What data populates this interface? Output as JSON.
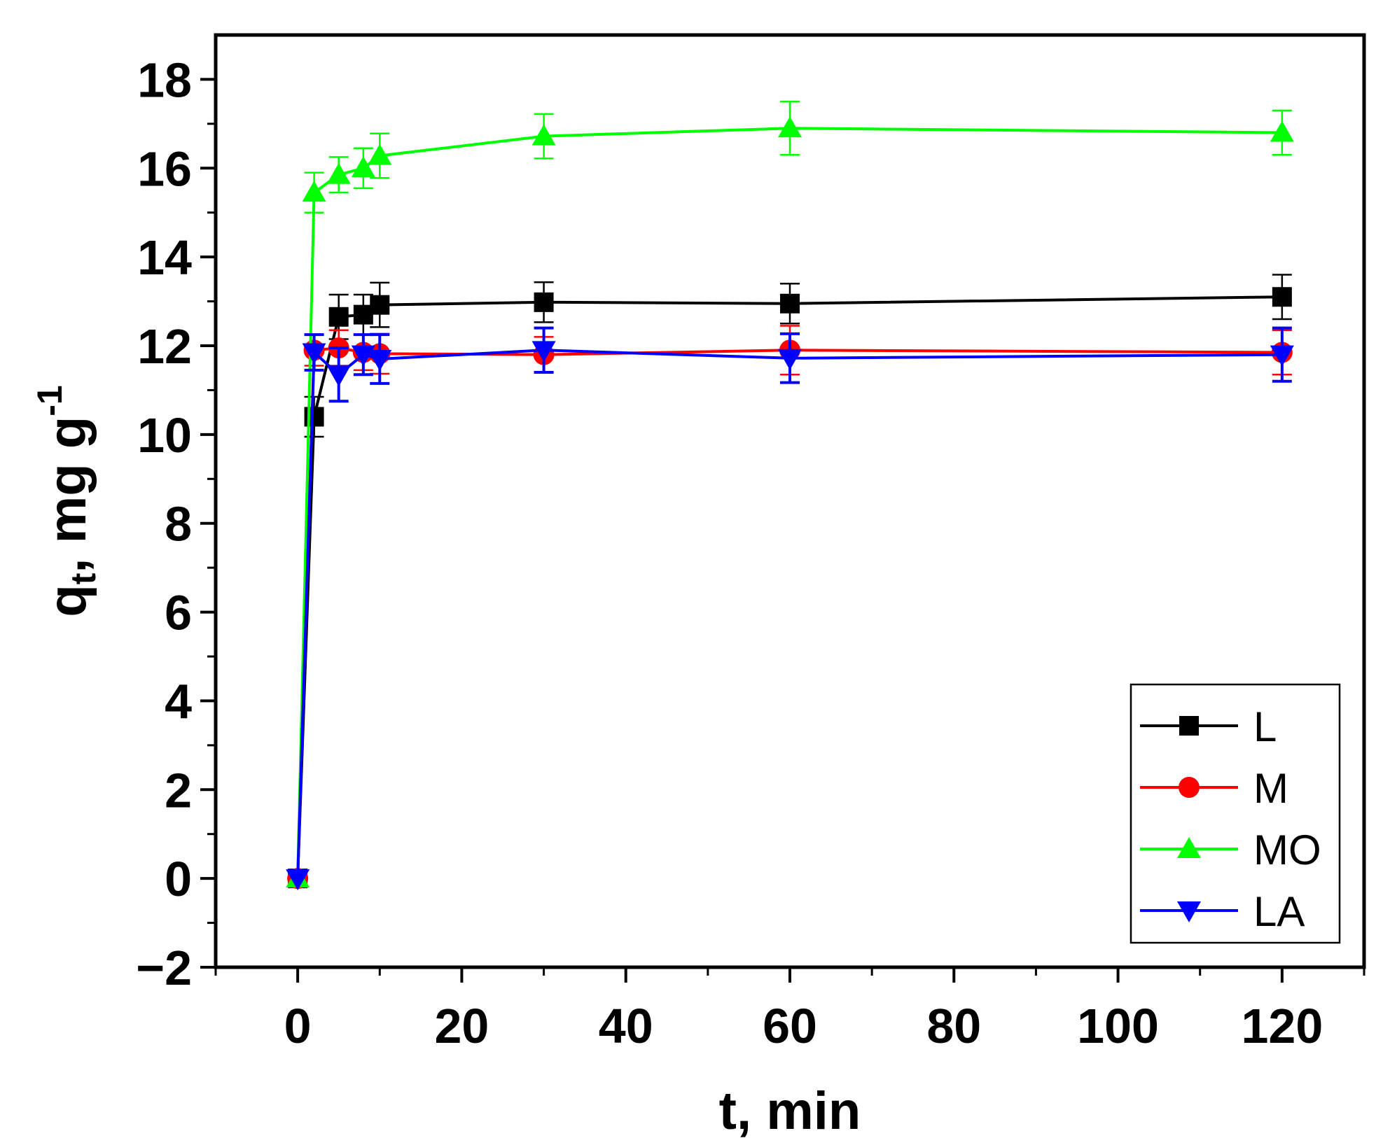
{
  "chart_data": {
    "type": "line",
    "title": "",
    "xlabel": "t, min",
    "ylabel": {
      "q": "q",
      "sub": "t",
      "rest": ", mg g",
      "sup": "-1"
    },
    "xlim": [
      -10,
      130
    ],
    "ylim": [
      -2,
      19
    ],
    "x_ticks": [
      0,
      20,
      40,
      60,
      80,
      100,
      120
    ],
    "x_tick_labels": [
      "0",
      "20",
      "40",
      "60",
      "80",
      "100",
      "120"
    ],
    "y_ticks": [
      -2,
      0,
      2,
      4,
      6,
      8,
      10,
      12,
      14,
      16,
      18
    ],
    "y_tick_labels": [
      "−2",
      "0",
      "2",
      "4",
      "6",
      "8",
      "10",
      "12",
      "14",
      "16",
      "18"
    ],
    "x": [
      0,
      2,
      5,
      8,
      10,
      30,
      60,
      120
    ],
    "legend_position": "bottom-right",
    "series": [
      {
        "name": "L",
        "color": "#000000",
        "marker": "square",
        "values": [
          0,
          10.4,
          12.65,
          12.7,
          12.92,
          12.98,
          12.95,
          13.1
        ],
        "errors": [
          0,
          0.45,
          0.5,
          0.45,
          0.5,
          0.45,
          0.45,
          0.5
        ]
      },
      {
        "name": "M",
        "color": "#ff0000",
        "marker": "circle",
        "values": [
          0,
          11.9,
          11.95,
          11.85,
          11.82,
          11.8,
          11.9,
          11.85
        ],
        "errors": [
          0,
          0.35,
          0.4,
          0.4,
          0.45,
          0.4,
          0.55,
          0.5
        ]
      },
      {
        "name": "MO",
        "color": "#00ff00",
        "marker": "triangle-up",
        "values": [
          0,
          15.45,
          15.85,
          16.0,
          16.28,
          16.72,
          16.9,
          16.8
        ],
        "errors": [
          0,
          0.45,
          0.4,
          0.45,
          0.5,
          0.5,
          0.6,
          0.5
        ]
      },
      {
        "name": "LA",
        "color": "#0000ff",
        "marker": "triangle-down",
        "values": [
          0,
          11.85,
          11.35,
          11.8,
          11.7,
          11.9,
          11.72,
          11.8
        ],
        "errors": [
          0,
          0.4,
          0.6,
          0.45,
          0.55,
          0.5,
          0.55,
          0.6
        ]
      }
    ]
  }
}
